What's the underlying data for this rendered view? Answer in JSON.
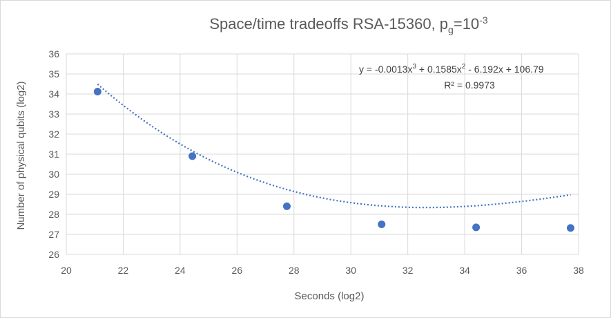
{
  "chart_data": {
    "type": "scatter",
    "title": {
      "main": "Space/time tradeoffs RSA-15360, p",
      "sub": "g",
      "eq": "=10",
      "exp": "-3"
    },
    "xlabel": "Seconds (log2)",
    "ylabel": "Number of physical qubits (log2)",
    "xlim": [
      20,
      38
    ],
    "ylim": [
      26,
      36
    ],
    "x_ticks": [
      20,
      22,
      24,
      26,
      28,
      30,
      32,
      34,
      36,
      38
    ],
    "y_ticks": [
      26,
      27,
      28,
      29,
      30,
      31,
      32,
      33,
      34,
      35,
      36
    ],
    "grid": true,
    "points": [
      {
        "x": 21.1,
        "y": 34.12
      },
      {
        "x": 24.43,
        "y": 30.9
      },
      {
        "x": 27.75,
        "y": 28.4
      },
      {
        "x": 31.08,
        "y": 27.5
      },
      {
        "x": 34.4,
        "y": 27.35
      },
      {
        "x": 37.72,
        "y": 27.32
      }
    ],
    "trendline": {
      "type": "polynomial-3",
      "coefficients": [
        -0.0013,
        0.1585,
        -6.192,
        106.79
      ],
      "equation_parts": {
        "p1": "y = -0.0013x",
        "e1": "3",
        "p2": " + 0.1585x",
        "e2": "2",
        "p3": " - 6.192x + 106.79"
      },
      "r_squared": "R² = 0.9973"
    },
    "colors": {
      "marker": "#4472c4",
      "grid": "#d9d9d9",
      "text": "#595959"
    }
  }
}
